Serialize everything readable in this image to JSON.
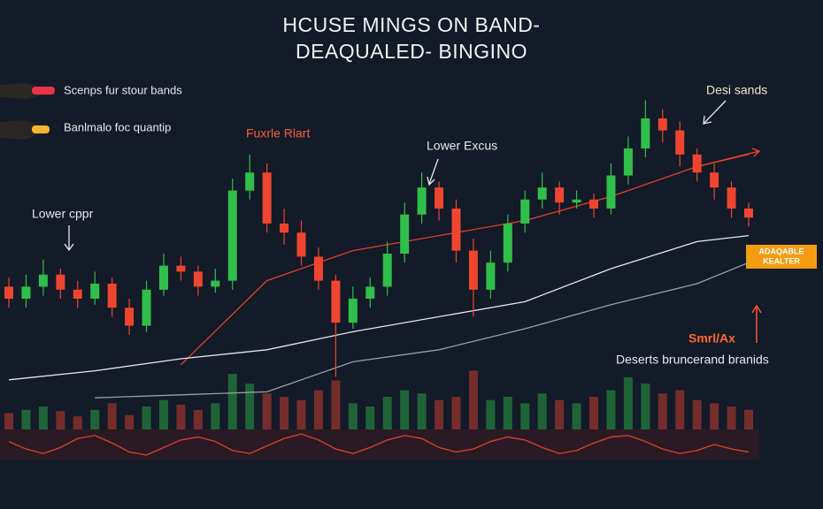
{
  "chart_data": {
    "type": "candlestick",
    "title": [
      "HCUSE MINGS ON BAND-",
      "DEAQUALED- BINGINO"
    ],
    "legend": [
      "Scenps fur stour bands",
      "Banlmalo foc quantip"
    ],
    "annotations": [
      "Lower cppr",
      "Fuxrle Rlart",
      "Lower Excus",
      "Desi sands",
      "Smrl/Ax",
      "Deserts bruncerand branids"
    ],
    "badge": [
      "ADAQABLE",
      "KEALTER"
    ],
    "ylim": [
      -10,
      100
    ],
    "open": [
      34,
      30,
      34,
      38,
      33,
      30,
      35,
      27,
      21,
      33,
      41,
      39,
      34,
      36,
      66,
      72,
      55,
      52,
      44,
      36,
      22,
      30,
      34,
      45,
      58,
      67,
      60,
      46,
      33,
      42,
      55,
      63,
      67,
      62,
      63,
      60,
      71,
      80,
      90,
      86,
      78,
      72,
      67,
      60
    ],
    "high": [
      37,
      38,
      43,
      40,
      36,
      39,
      37,
      30,
      36,
      45,
      44,
      41,
      40,
      70,
      78,
      75,
      60,
      56,
      47,
      38,
      34,
      37,
      49,
      62,
      72,
      69,
      63,
      50,
      46,
      58,
      66,
      72,
      69,
      66,
      65,
      75,
      84,
      96,
      93,
      89,
      80,
      75,
      69,
      62
    ],
    "low": [
      27,
      27,
      31,
      30,
      27,
      28,
      24,
      18,
      19,
      31,
      36,
      31,
      32,
      33,
      63,
      52,
      48,
      41,
      33,
      4,
      20,
      27,
      31,
      42,
      55,
      56,
      42,
      24,
      30,
      39,
      52,
      60,
      58,
      60,
      57,
      58,
      68,
      77,
      82,
      74,
      69,
      63,
      57,
      54
    ],
    "close": [
      30,
      34,
      38,
      33,
      30,
      35,
      27,
      21,
      33,
      41,
      39,
      34,
      36,
      66,
      72,
      55,
      52,
      44,
      36,
      22,
      30,
      34,
      45,
      58,
      67,
      60,
      46,
      33,
      42,
      55,
      63,
      67,
      62,
      63,
      60,
      71,
      80,
      90,
      86,
      78,
      72,
      67,
      60,
      57
    ],
    "up_color": "#2fbf4a",
    "down_color": "#ee4530",
    "band_x": [
      0,
      5,
      10,
      15,
      20,
      25,
      30,
      35,
      40,
      43
    ],
    "series": [
      {
        "color": "#e0402c",
        "values": [
          null,
          null,
          8,
          36,
          46,
          51,
          56,
          64,
          74,
          78
        ]
      },
      {
        "color": "#e6e6e6",
        "values": [
          3,
          6,
          10,
          13,
          19,
          24,
          29,
          40,
          49,
          51
        ]
      },
      {
        "color": "#9aa0aa",
        "values": [
          null,
          -3,
          -2,
          -1,
          9,
          13,
          20,
          28,
          35,
          42
        ]
      }
    ],
    "volume_ylim": [
      0,
      100
    ],
    "volume": [
      25,
      30,
      35,
      28,
      20,
      30,
      40,
      22,
      35,
      45,
      38,
      30,
      40,
      85,
      70,
      55,
      50,
      45,
      60,
      75,
      40,
      35,
      50,
      60,
      55,
      45,
      50,
      90,
      45,
      50,
      40,
      55,
      45,
      40,
      50,
      60,
      80,
      70,
      55,
      60,
      45,
      40,
      35,
      30
    ],
    "osc_ylim": [
      -10,
      10
    ],
    "osc": [
      2,
      -3,
      -6,
      -2,
      4,
      6,
      1,
      -5,
      -7,
      -2,
      3,
      5,
      2,
      -4,
      -6,
      -1,
      4,
      7,
      3,
      -3,
      -6,
      -2,
      3,
      6,
      4,
      -2,
      -5,
      -3,
      2,
      5,
      3,
      -2,
      -6,
      -4,
      1,
      5,
      6,
      2,
      -3,
      -6,
      -4,
      0,
      -3,
      -5
    ]
  }
}
